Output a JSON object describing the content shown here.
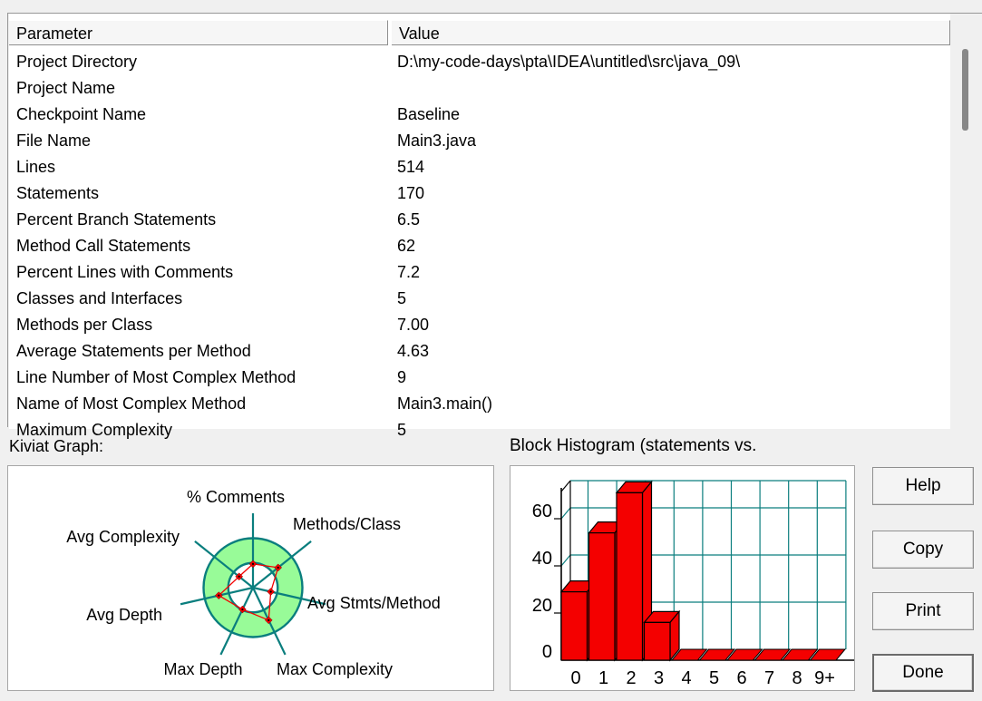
{
  "window": {
    "background": "#f0f0f0"
  },
  "table": {
    "header": {
      "parameter": "Parameter",
      "value": "Value"
    },
    "rows": [
      {
        "parameter": "Project Directory",
        "value": "D:\\my-code-days\\pta\\IDEA\\untitled\\src\\java_09\\"
      },
      {
        "parameter": "Project Name",
        "value": ""
      },
      {
        "parameter": "Checkpoint Name",
        "value": "Baseline"
      },
      {
        "parameter": "File Name",
        "value": "Main3.java"
      },
      {
        "parameter": "Lines",
        "value": "514"
      },
      {
        "parameter": "Statements",
        "value": "170"
      },
      {
        "parameter": "Percent Branch Statements",
        "value": "6.5"
      },
      {
        "parameter": "Method Call Statements",
        "value": "62"
      },
      {
        "parameter": "Percent Lines with Comments",
        "value": "7.2"
      },
      {
        "parameter": "Classes and Interfaces",
        "value": "5"
      },
      {
        "parameter": "Methods per Class",
        "value": "7.00"
      },
      {
        "parameter": "Average Statements per Method",
        "value": "4.63"
      },
      {
        "parameter": "Line Number of Most Complex Method",
        "value": "9"
      },
      {
        "parameter": "Name of Most Complex Method",
        "value": "Main3.main()"
      },
      {
        "parameter": "Maximum Complexity",
        "value": "5"
      }
    ]
  },
  "kiviat": {
    "label": "Kiviat Graph:",
    "chart_data": {
      "type": "radar",
      "axes": [
        "% Comments",
        "Methods/Class",
        "Avg Stmts/Method",
        "Max Complexity",
        "Max Depth",
        "Avg Depth",
        "Avg Complexity"
      ],
      "values_norm": [
        0.48,
        0.65,
        0.37,
        0.73,
        0.49,
        0.71,
        0.36
      ],
      "ring_inner_norm": 0.5,
      "colors": {
        "ring_fill": "#98fb98",
        "axis_line": "#0a7e7e",
        "data_line": "#f40000"
      }
    }
  },
  "histogram": {
    "title": "Block Histogram (statements vs.",
    "chart_data": {
      "type": "bar",
      "categories": [
        "0",
        "1",
        "2",
        "3",
        "4",
        "5",
        "6",
        "7",
        "8",
        "9+"
      ],
      "values": [
        29,
        54,
        71,
        16,
        0,
        0,
        0,
        0,
        0,
        0
      ],
      "y_ticks": [
        0,
        20,
        40,
        60
      ],
      "ylim": [
        0,
        72
      ],
      "grid": true,
      "colors": {
        "bar_fill": "#f40000",
        "grid": "#0a7e7e",
        "axis": "#000000"
      }
    }
  },
  "buttons": [
    {
      "label": "Help",
      "default": false
    },
    {
      "label": "Copy",
      "default": false
    },
    {
      "label": "Print",
      "default": false
    },
    {
      "label": "Done",
      "default": true
    }
  ]
}
